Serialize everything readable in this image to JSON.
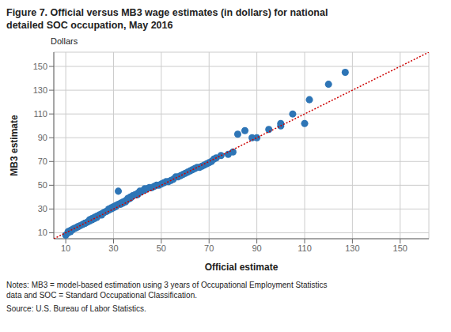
{
  "chart_data": {
    "type": "scatter",
    "title": "Figure 7. Official versus MB3 wage estimates (in dollars) for national\ndetailed SOC occupation, May 2016",
    "xlabel": "Official estimate",
    "ylabel": "MB3 estimate",
    "corner_label": "Dollars",
    "notes": "Notes: MB3 = model-based estimation using 3 years of Occupational Employment Statistics\ndata and SOC = Standard Occupational Classification.",
    "source": "Source: U.S. Bureau of Labor Statistics.",
    "xlim": [
      5,
      162
    ],
    "ylim": [
      5,
      162
    ],
    "xticks": [
      10,
      30,
      50,
      70,
      90,
      110,
      130,
      150
    ],
    "yticks": [
      10,
      30,
      50,
      70,
      90,
      110,
      130,
      150
    ],
    "grid": true,
    "series": [
      {
        "type": "scatter",
        "color": "#2e75b6",
        "marker": "circle",
        "x": [
          10,
          11,
          11,
          12,
          12,
          13,
          13,
          14,
          14,
          15,
          15,
          16,
          17,
          18,
          18,
          19,
          20,
          20,
          21,
          21,
          22,
          22,
          23,
          23,
          24,
          25,
          25,
          26,
          26,
          27,
          27,
          28,
          28,
          29,
          29,
          30,
          30,
          31,
          31,
          32,
          32,
          33,
          33,
          34,
          34,
          35,
          35,
          36,
          36,
          37,
          37,
          38,
          38,
          39,
          40,
          40,
          41,
          41,
          42,
          43,
          43,
          44,
          45,
          46,
          47,
          48,
          49,
          50,
          51,
          52,
          53,
          54,
          55,
          56,
          57,
          58,
          59,
          60,
          61,
          62,
          63,
          64,
          65,
          66,
          67,
          68,
          69,
          70,
          71,
          72,
          73,
          75,
          78,
          80,
          82,
          85,
          88,
          90,
          95,
          100,
          100,
          105,
          110,
          112,
          120,
          127
        ],
        "values": [
          8,
          10,
          11,
          11,
          12,
          13,
          13,
          14,
          14,
          15,
          15,
          16,
          17,
          18,
          18,
          19,
          20,
          21,
          21,
          22,
          22,
          23,
          23,
          24,
          25,
          25,
          26,
          27,
          27,
          28,
          28,
          29,
          30,
          30,
          31,
          31,
          32,
          32,
          33,
          34,
          45,
          34,
          35,
          35,
          36,
          36,
          37,
          38,
          39,
          39,
          40,
          41,
          41,
          42,
          42,
          43,
          44,
          45,
          45,
          46,
          47,
          47,
          48,
          48,
          49,
          50,
          50,
          51,
          52,
          53,
          53,
          54,
          55,
          57,
          57,
          58,
          59,
          60,
          61,
          62,
          63,
          64,
          65,
          65,
          66,
          67,
          68,
          69,
          70,
          72,
          73,
          75,
          76,
          78,
          93,
          96,
          90,
          90,
          97,
          100,
          102,
          110,
          102,
          122,
          135,
          145
        ]
      },
      {
        "type": "line",
        "color": "#cc0000",
        "line_style": "dotted",
        "x": [
          5,
          162
        ],
        "values": [
          5,
          162
        ]
      }
    ]
  }
}
